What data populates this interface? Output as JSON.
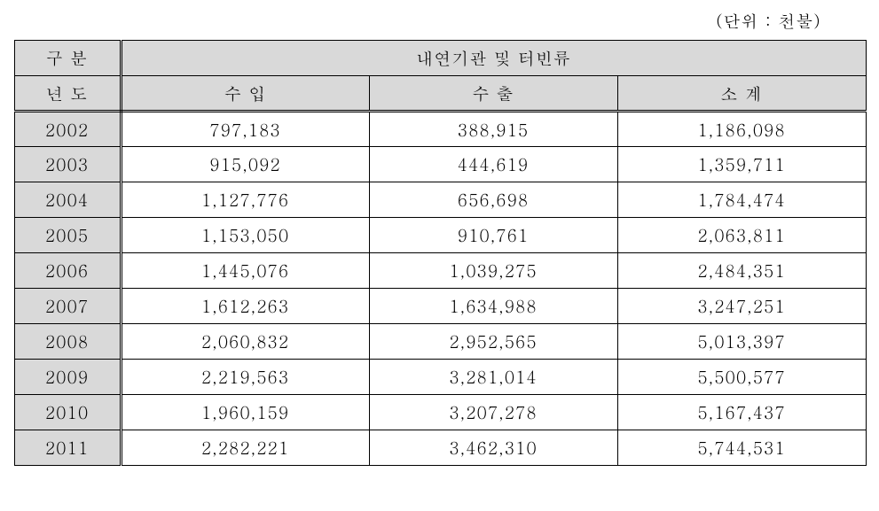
{
  "unit_label": "(단위 : 천불)",
  "table": {
    "header": {
      "category_label": "구 분",
      "group_label": "내연기관 및 터빈류",
      "year_label": "년 도",
      "col_import": "수   입",
      "col_export": "수   출",
      "col_subtotal": "소   계"
    },
    "rows": [
      {
        "year": "2002",
        "import": "797,183",
        "export": "388,915",
        "subtotal": "1,186,098"
      },
      {
        "year": "2003",
        "import": "915,092",
        "export": "444,619",
        "subtotal": "1,359,711"
      },
      {
        "year": "2004",
        "import": "1,127,776",
        "export": "656,698",
        "subtotal": "1,784,474"
      },
      {
        "year": "2005",
        "import": "1,153,050",
        "export": "910,761",
        "subtotal": "2,063,811"
      },
      {
        "year": "2006",
        "import": "1,445,076",
        "export": "1,039,275",
        "subtotal": "2,484,351"
      },
      {
        "year": "2007",
        "import": "1,612,263",
        "export": "1,634,988",
        "subtotal": "3,247,251"
      },
      {
        "year": "2008",
        "import": "2,060,832",
        "export": "2,952,565",
        "subtotal": "5,013,397"
      },
      {
        "year": "2009",
        "import": "2,219,563",
        "export": "3,281,014",
        "subtotal": "5,500,577"
      },
      {
        "year": "2010",
        "import": "1,960,159",
        "export": "3,207,278",
        "subtotal": "5,167,437"
      },
      {
        "year": "2011",
        "import": "2,282,221",
        "export": "3,462,310",
        "subtotal": "5,744,531"
      }
    ]
  },
  "styling": {
    "header_bg": "#d9d9d9",
    "data_bg": "#ffffff",
    "border_color": "#000000",
    "font_size": 19
  }
}
